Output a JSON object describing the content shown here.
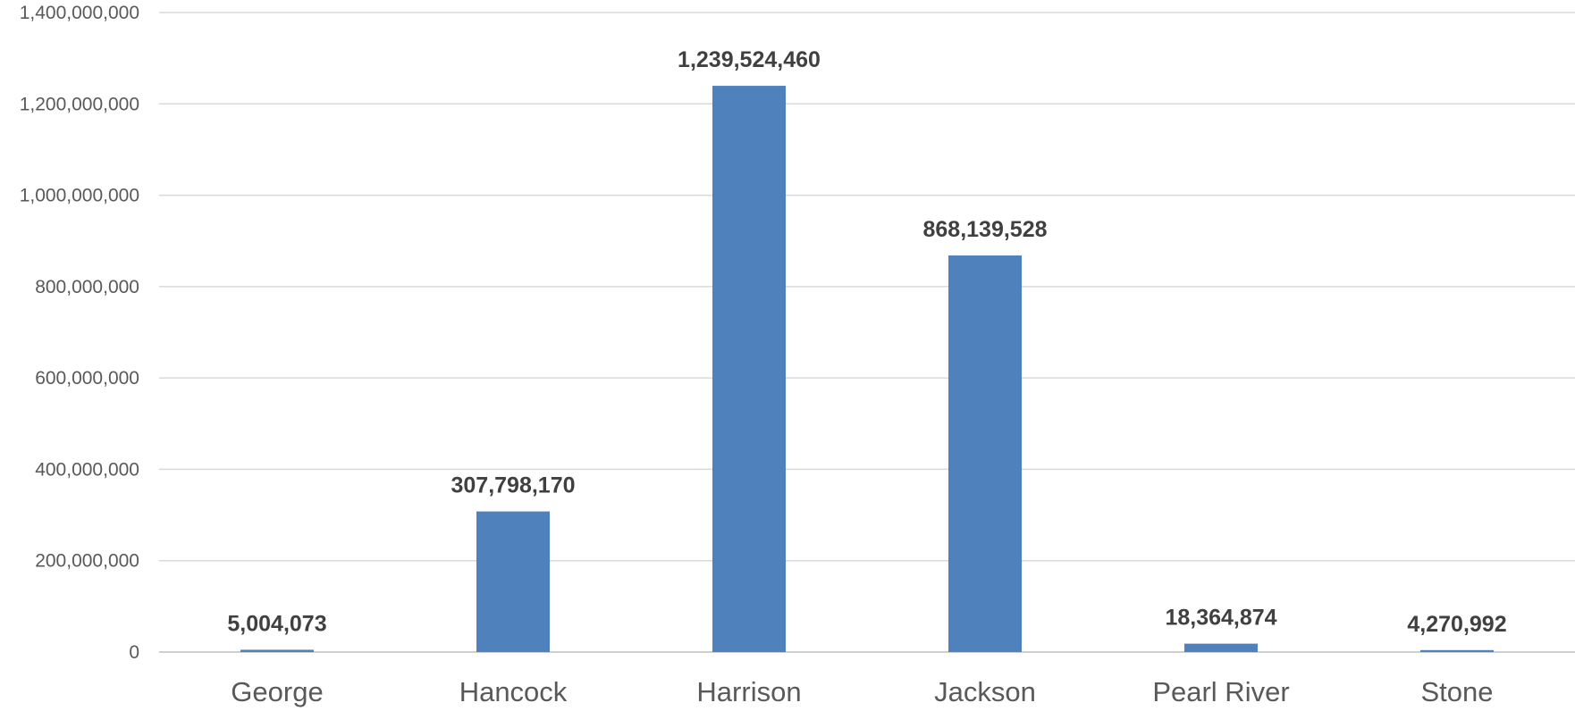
{
  "chart_data": {
    "type": "bar",
    "title": "",
    "xlabel": "",
    "ylabel": "",
    "categories": [
      "George",
      "Hancock",
      "Harrison",
      "Jackson",
      "Pearl River",
      "Stone"
    ],
    "values": [
      5004073,
      307798170,
      1239524460,
      868139528,
      18364874,
      4270992
    ],
    "data_labels": [
      "5,004,073",
      "307,798,170",
      "1,239,524,460",
      "868,139,528",
      "18,364,874",
      "4,270,992"
    ],
    "ylim": [
      0,
      1400000000
    ],
    "y_ticks": [
      0,
      200000000,
      400000000,
      600000000,
      800000000,
      1000000000,
      1200000000,
      1400000000
    ],
    "y_tick_labels": [
      "0",
      "200,000,000",
      "400,000,000",
      "600,000,000",
      "800,000,000",
      "1,000,000,000",
      "1,200,000,000",
      "1,400,000,000"
    ],
    "grid": true,
    "legend": "none",
    "bar_color": "#4f81bd"
  }
}
